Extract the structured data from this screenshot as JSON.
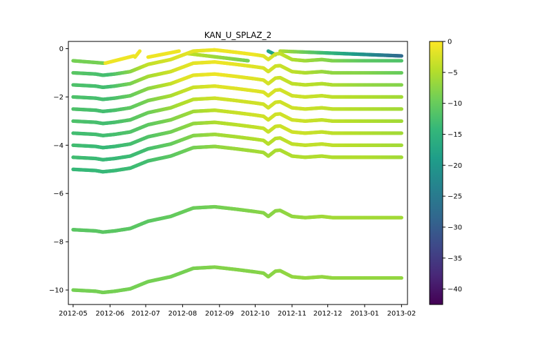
{
  "chart_data": {
    "type": "scatter",
    "title": "KAN_U_SPLAZ_2",
    "xlabel": "",
    "ylabel": "",
    "x_tick_labels": [
      "2012-05",
      "2012-06",
      "2012-07",
      "2012-08",
      "2012-09",
      "2012-10",
      "2012-11",
      "2012-12",
      "2013-01",
      "2013-02"
    ],
    "x_range": [
      "2012-04-27",
      "2013-02-06"
    ],
    "y_ticks": [
      0,
      -2,
      -4,
      -6,
      -8,
      -10
    ],
    "y_tick_labels": [
      "0",
      "−2",
      "−4",
      "−6",
      "−8",
      "−10"
    ],
    "ylim": [
      -10.6,
      0.3
    ],
    "colorbar": {
      "colormap": "viridis",
      "range": [
        -42.5,
        0
      ],
      "ticks": [
        0,
        -5,
        -10,
        -15,
        -20,
        -25,
        -30,
        -35,
        -40
      ],
      "tick_labels": [
        "0",
        "−5",
        "−10",
        "−15",
        "−20",
        "−25",
        "−30",
        "−35",
        "−40"
      ]
    },
    "depth_profile": {
      "dates": [
        "2012-05-01",
        "2012-05-20",
        "2012-05-26",
        "2012-06-05",
        "2012-06-18",
        "2012-07-03",
        "2012-07-22",
        "2012-08-10",
        "2012-08-28",
        "2012-09-06",
        "2012-09-15",
        "2012-10-01",
        "2012-10-08",
        "2012-10-12",
        "2012-10-18",
        "2012-10-22",
        "2012-11-01",
        "2012-11-12",
        "2012-11-26",
        "2012-12-05",
        "2013-02-01"
      ],
      "offsets": [
        0,
        -0.05,
        -0.1,
        -0.05,
        0.05,
        0.35,
        0.55,
        0.9,
        0.95,
        0.9,
        0.85,
        0.75,
        0.7,
        0.55,
        0.78,
        0.8,
        0.55,
        0.5,
        0.55,
        0.5,
        0.5
      ]
    },
    "series": [
      {
        "start_depth": -0.5,
        "dates": [
          "2012-05-01",
          "2012-05-27"
        ],
        "values": [
          -0.5,
          -0.6
        ],
        "temperature": [
          -9,
          -9
        ]
      },
      {
        "start_depth": -0.5,
        "dates": [
          "2012-05-28",
          "2012-06-21"
        ],
        "values": [
          -0.6,
          -0.3
        ],
        "temperature": [
          -1,
          -1
        ]
      },
      {
        "start_depth": -0.5,
        "dates": [
          "2012-06-22",
          "2012-06-26"
        ],
        "values": [
          -0.35,
          -0.1
        ],
        "temperature": [
          -1,
          -1
        ]
      },
      {
        "start_depth": -0.5,
        "dates": [
          "2012-07-03",
          "2012-07-29"
        ],
        "values": [
          -0.35,
          -0.1
        ],
        "temperature": [
          -1,
          -1
        ]
      },
      {
        "start_depth": -0.5,
        "dates": [
          "2012-08-05",
          "2012-09-25"
        ],
        "values": [
          -0.2,
          -0.5
        ],
        "temperature": [
          -4,
          -9
        ]
      },
      {
        "start_depth": -0.5,
        "dates": [
          "2012-10-12",
          "2012-10-18"
        ],
        "values": [
          -0.1,
          -0.25
        ],
        "temperature": [
          -18,
          -18
        ]
      },
      {
        "start_depth": -0.5,
        "dates": [
          "2012-10-22",
          "2013-02-01"
        ],
        "values": [
          -0.1,
          -0.3
        ],
        "temperature": [
          -5,
          -28
        ]
      },
      {
        "start_depth": -1.0,
        "dates": [
          "2012-05-01",
          "2013-02-01"
        ],
        "temperature": [
          -11,
          -13,
          -4,
          -2,
          -1,
          -1,
          -5,
          -8,
          -11,
          -12
        ]
      },
      {
        "start_depth": -1.5,
        "dates": [
          "2012-05-01",
          "2013-02-01"
        ],
        "temperature": [
          -12,
          -13,
          -6,
          -2,
          -1,
          -2,
          -4,
          -7,
          -8,
          -10
        ]
      },
      {
        "start_depth": -2.0,
        "dates": [
          "2012-05-01",
          "2013-02-01"
        ],
        "temperature": [
          -12,
          -13,
          -8,
          -2,
          -1,
          -2,
          -4,
          -5,
          -7,
          -8
        ]
      },
      {
        "start_depth": -2.5,
        "dates": [
          "2012-05-01",
          "2013-02-01"
        ],
        "temperature": [
          -12,
          -13,
          -9,
          -4,
          -2,
          -2,
          -3,
          -4,
          -5,
          -6
        ]
      },
      {
        "start_depth": -3.0,
        "dates": [
          "2012-05-01",
          "2013-02-01"
        ],
        "temperature": [
          -12,
          -13,
          -10,
          -5,
          -3,
          -3,
          -3,
          -4,
          -5,
          -6
        ]
      },
      {
        "start_depth": -3.5,
        "dates": [
          "2012-05-01",
          "2013-02-01"
        ],
        "temperature": [
          -13,
          -13,
          -11,
          -7,
          -4,
          -3,
          -3,
          -4,
          -5,
          -6
        ]
      },
      {
        "start_depth": -4.0,
        "dates": [
          "2012-05-01",
          "2013-02-01"
        ],
        "temperature": [
          -13,
          -14,
          -12,
          -8,
          -5,
          -4,
          -3,
          -4,
          -5,
          -6
        ]
      },
      {
        "start_depth": -4.5,
        "dates": [
          "2012-05-01",
          "2013-02-01"
        ],
        "temperature": [
          -13,
          -14,
          -13,
          -9,
          -6,
          -5,
          -4,
          -4,
          -5,
          -6
        ]
      },
      {
        "start_depth": -5.0,
        "dates": [
          "2012-05-01",
          "2013-02-01"
        ],
        "temperature": [
          -14,
          -14,
          -13,
          -10,
          -7,
          -6,
          -5,
          -5,
          -5,
          -6
        ]
      },
      {
        "start_depth": -7.5,
        "dates": [
          "2012-05-01",
          "2013-02-01"
        ],
        "temperature": [
          -11,
          -11,
          -11,
          -10,
          -9,
          -8,
          -7,
          -6,
          -6,
          -6
        ]
      },
      {
        "start_depth": -10.0,
        "dates": [
          "2012-05-01",
          "2013-02-01"
        ],
        "temperature": [
          -9,
          -9,
          -9,
          -9,
          -8,
          -8,
          -7,
          -7,
          -7,
          -7
        ]
      }
    ]
  }
}
